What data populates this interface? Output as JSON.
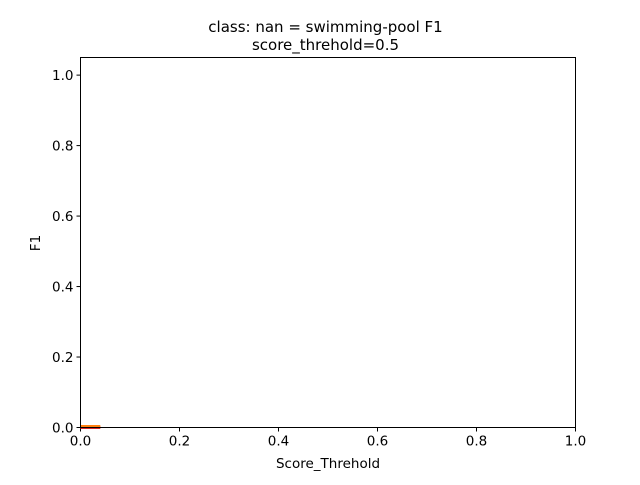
{
  "chart_data": {
    "type": "line",
    "title": "class: nan = swimming-pool F1",
    "subtitle": "score_threhold=0.5",
    "xlabel": "Score_Threhold",
    "ylabel": "F1",
    "xlim": [
      0.0,
      1.0
    ],
    "ylim": [
      0.0,
      1.05
    ],
    "xticks": [
      "0.0",
      "0.2",
      "0.4",
      "0.6",
      "0.8",
      "1.0"
    ],
    "yticks": [
      "0.0",
      "0.2",
      "0.4",
      "0.6",
      "0.8",
      "1.0"
    ],
    "grid": false,
    "legend": "none",
    "series": [
      {
        "color": "#d62728",
        "x": [
          0.0,
          0.04
        ],
        "y": [
          0.0,
          0.0
        ]
      },
      {
        "color": "#ff7f0e",
        "x": [
          0.0,
          0.04
        ],
        "y": [
          0.003,
          0.003
        ]
      }
    ]
  }
}
